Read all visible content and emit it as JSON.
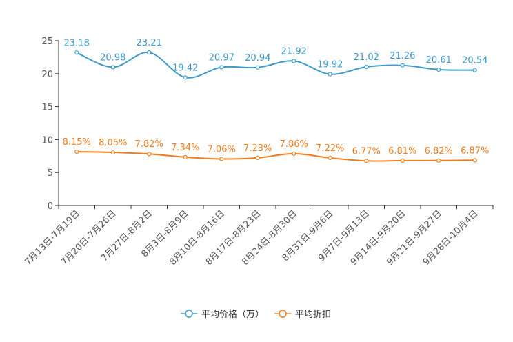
{
  "chart_data": {
    "type": "line",
    "title": "",
    "xlabel": "",
    "ylabel": "",
    "ylim": [
      0,
      25
    ],
    "yticks": [
      0,
      5,
      10,
      15,
      20,
      25
    ],
    "grid": false,
    "legend_position": "bottom-center",
    "categories": [
      "7月13日-7月19日",
      "7月20日-7月26日",
      "7月27日-8月2日",
      "8月3日-8月9日",
      "8月10日-8月16日",
      "8月17日-8月23日",
      "8月24日-8月30日",
      "8月31日-9月6日",
      "9月7日-9月13日",
      "9月14日-9月20日",
      "9月21日-9月27日",
      "9月28日-10月4日"
    ],
    "series": [
      {
        "name": "平均价格（万）",
        "color": "#3d9bca",
        "values": [
          23.18,
          20.98,
          23.21,
          19.42,
          20.97,
          20.94,
          21.92,
          19.92,
          21.02,
          21.26,
          20.61,
          20.54
        ],
        "labels": [
          "23.18",
          "20.98",
          "23.21",
          "19.42",
          "20.97",
          "20.94",
          "21.92",
          "19.92",
          "21.02",
          "21.26",
          "20.61",
          "20.54"
        ]
      },
      {
        "name": "平均折扣",
        "color": "#f07c1c",
        "values": [
          8.15,
          8.05,
          7.82,
          7.34,
          7.06,
          7.23,
          7.86,
          7.22,
          6.77,
          6.81,
          6.82,
          6.87
        ],
        "labels": [
          "8.15%",
          "8.05%",
          "7.82%",
          "7.34%",
          "7.06%",
          "7.23%",
          "7.86%",
          "7.22%",
          "6.77%",
          "6.81%",
          "6.82%",
          "6.87%"
        ]
      }
    ]
  }
}
